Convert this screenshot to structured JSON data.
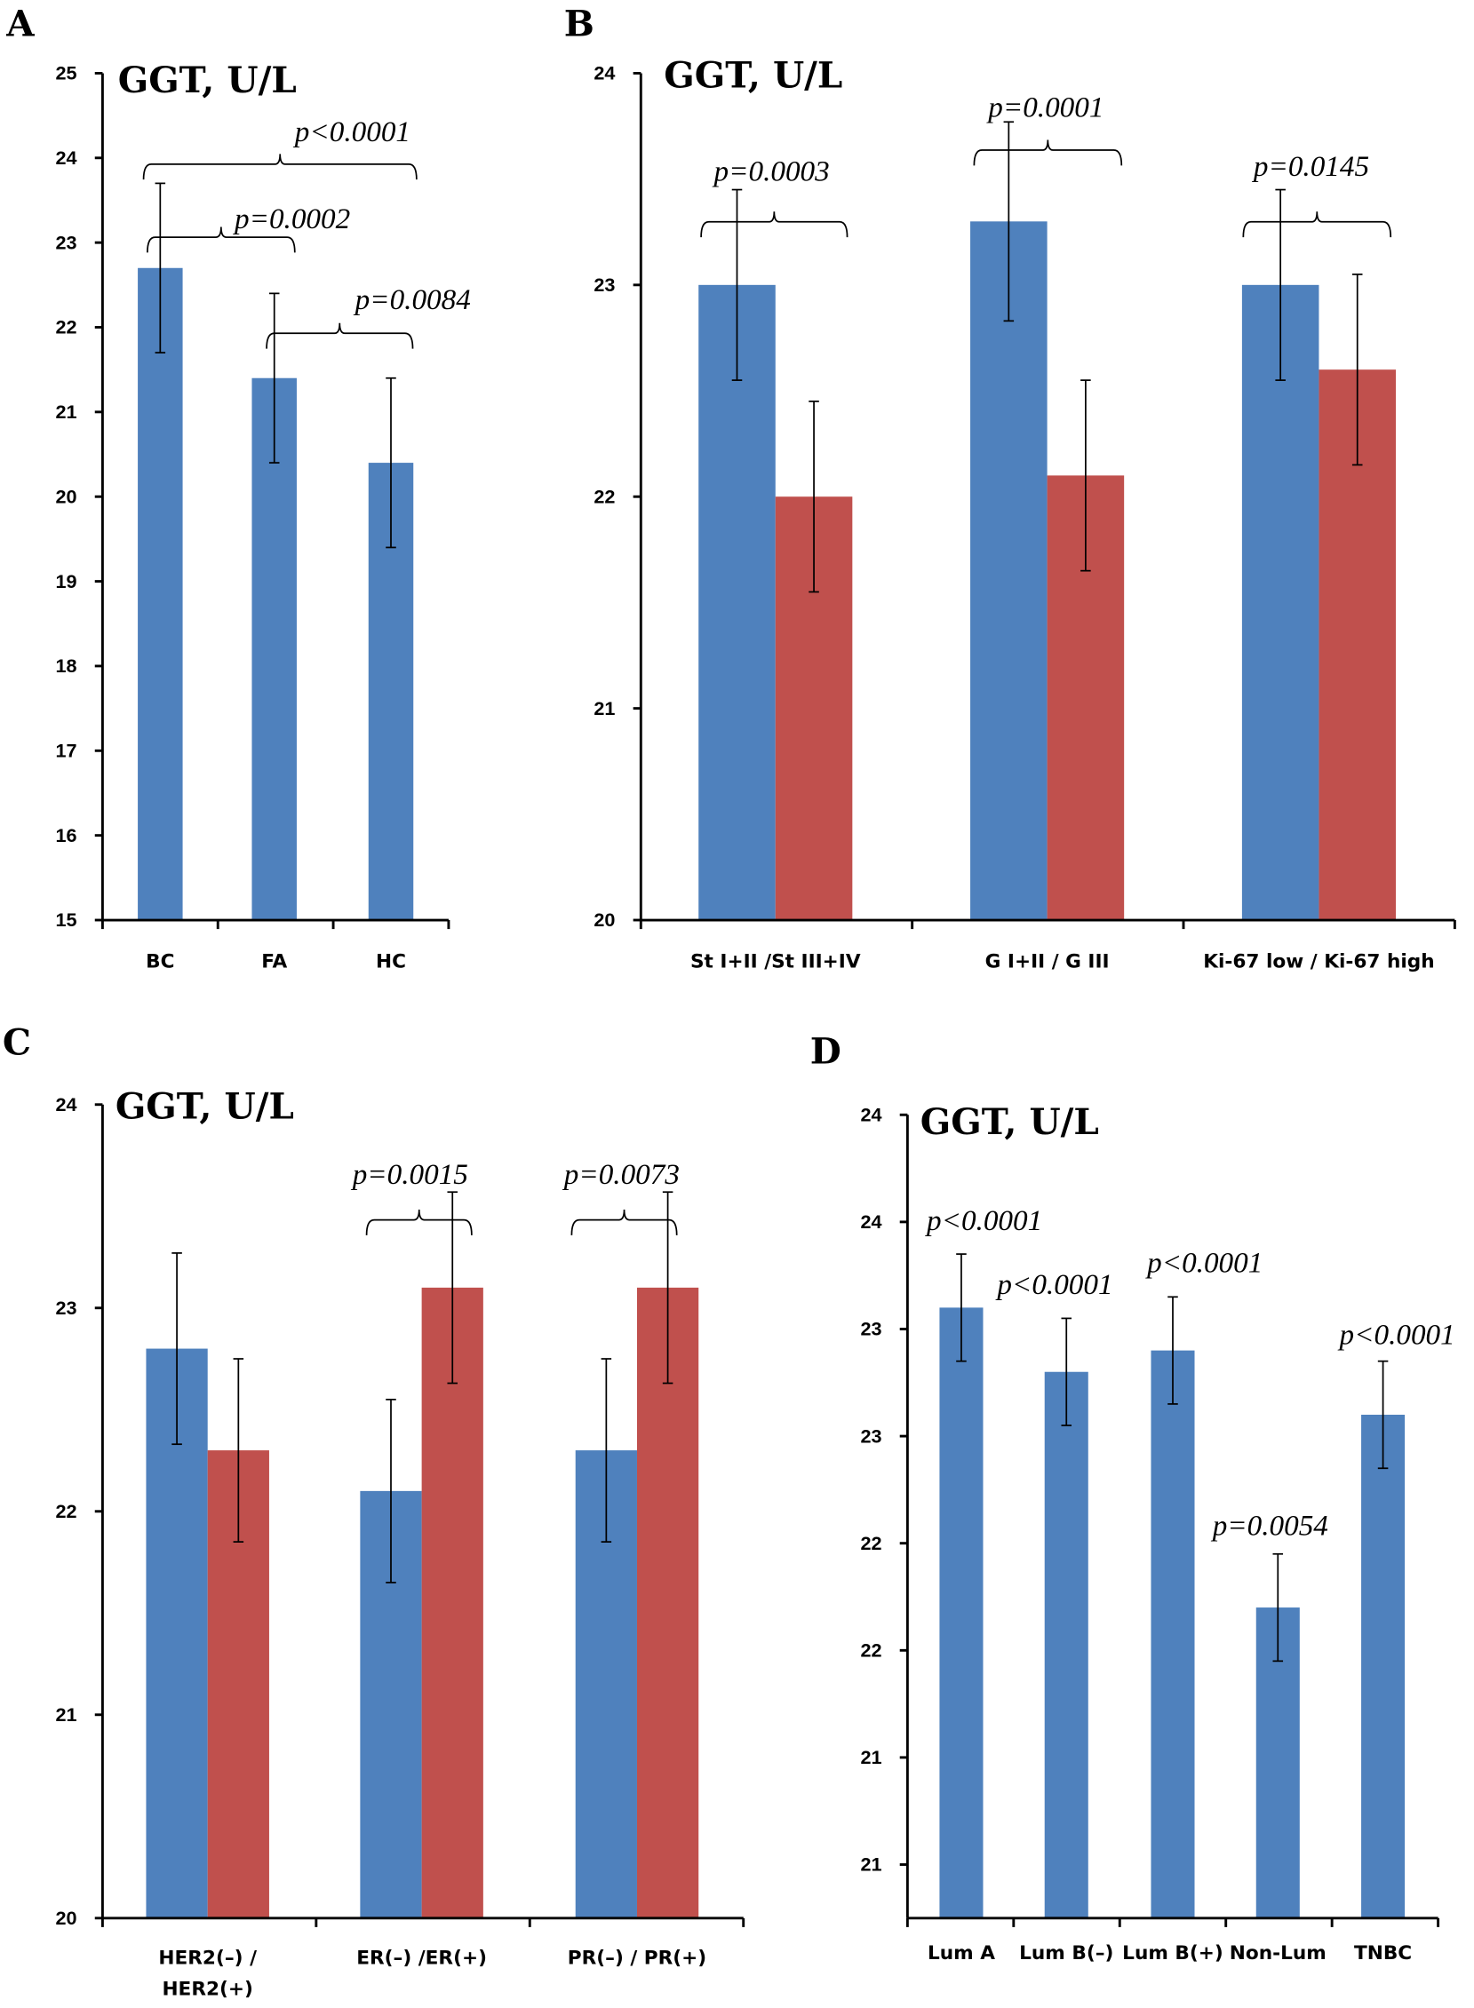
{
  "chart_data": [
    {
      "panel": "A",
      "type": "bar",
      "title": "GGT, U/L",
      "categories": [
        "BC",
        "FA",
        "HC"
      ],
      "series": [
        {
          "values": [
            22.7,
            21.4,
            20.4
          ],
          "error": [
            1.0,
            1.0,
            1.0
          ],
          "color": "#4f81bd"
        }
      ],
      "ylim": [
        15,
        25
      ],
      "yticks": [
        15,
        16,
        17,
        18,
        19,
        20,
        21,
        22,
        23,
        24,
        25
      ],
      "ytick_labels": [
        "15",
        "16",
        "17",
        "18",
        "19",
        "20",
        "21",
        "22",
        "23",
        "24",
        "25"
      ],
      "annotations": [
        {
          "between": [
            "BC",
            "HC"
          ],
          "text": "p<0.0001"
        },
        {
          "between": [
            "BC",
            "FA"
          ],
          "text": "p=0.0002"
        },
        {
          "between": [
            "FA",
            "HC"
          ],
          "text": "p=0.0084"
        }
      ]
    },
    {
      "panel": "B",
      "type": "bar",
      "title": "GGT, U/L",
      "categories": [
        "St I+II /St III+IV",
        "G I+II / G III",
        "Ki-67 low / Ki-67 high"
      ],
      "series": [
        {
          "values": [
            23.0,
            23.3,
            23.0
          ],
          "error": [
            0.45,
            0.47,
            0.45
          ],
          "color": "#4f81bd"
        },
        {
          "values": [
            22.0,
            22.1,
            22.6
          ],
          "error": [
            0.45,
            0.45,
            0.45
          ],
          "color": "#c0504d"
        }
      ],
      "ylim": [
        20,
        24
      ],
      "yticks": [
        20,
        21,
        22,
        23,
        24
      ],
      "ytick_labels": [
        "20",
        "21",
        "22",
        "23",
        "24"
      ],
      "annotations": [
        {
          "group": "St I+II /St III+IV",
          "text": "p=0.0003"
        },
        {
          "group": "G I+II / G III",
          "text": "p=0.0001"
        },
        {
          "group": "Ki-67 low / Ki-67 high",
          "text": "p=0.0145"
        }
      ]
    },
    {
      "panel": "C",
      "type": "bar",
      "title": "GGT, U/L",
      "categories": [
        "HER2(–) / HER2(+)",
        "ER(–) /ER(+)",
        "PR(–) / PR(+)"
      ],
      "category_lines": [
        [
          "HER2(–) /",
          "HER2(+)"
        ],
        [
          "ER(–) /ER(+)"
        ],
        [
          "PR(–) / PR(+)"
        ]
      ],
      "series": [
        {
          "values": [
            22.8,
            22.1,
            22.3
          ],
          "error": [
            0.47,
            0.45,
            0.45
          ],
          "color": "#4f81bd"
        },
        {
          "values": [
            22.3,
            23.1,
            23.1
          ],
          "error": [
            0.45,
            0.47,
            0.47
          ],
          "color": "#c0504d"
        }
      ],
      "ylim": [
        20,
        24
      ],
      "yticks": [
        20,
        21,
        22,
        23,
        24
      ],
      "ytick_labels": [
        "20",
        "21",
        "22",
        "23",
        "24"
      ],
      "annotations": [
        {
          "group": "ER(–) /ER(+)",
          "text": "p=0.0015"
        },
        {
          "group": "PR(–) / PR(+)",
          "text": "p=0.0073"
        }
      ]
    },
    {
      "panel": "D",
      "type": "bar",
      "title": "GGT, U/L",
      "categories": [
        "Lum A",
        "Lum B(–)",
        "Lum B(+)",
        "Non-Lum",
        "TNBC"
      ],
      "series": [
        {
          "values": [
            23.1,
            22.8,
            22.9,
            21.7,
            22.6
          ],
          "error": [
            0.25,
            0.25,
            0.25,
            0.25,
            0.25
          ],
          "color": "#4f81bd"
        }
      ],
      "ylim": [
        20.25,
        24.0
      ],
      "yticks": [
        20.5,
        21.0,
        21.5,
        22.0,
        22.5,
        23.0,
        23.5,
        24.0
      ],
      "ytick_labels": [
        "21",
        "21",
        "22",
        "22",
        "23",
        "23",
        "24",
        "24"
      ],
      "annotations": [
        {
          "bar": "Lum A",
          "text": "p<0.0001"
        },
        {
          "bar": "Lum B(–)",
          "text": "p<0.0001"
        },
        {
          "bar": "Lum B(+)",
          "text": "p<0.0001"
        },
        {
          "bar": "Non-Lum",
          "text": "p=0.0054"
        },
        {
          "bar": "TNBC",
          "text": "p<0.0001"
        }
      ]
    }
  ]
}
